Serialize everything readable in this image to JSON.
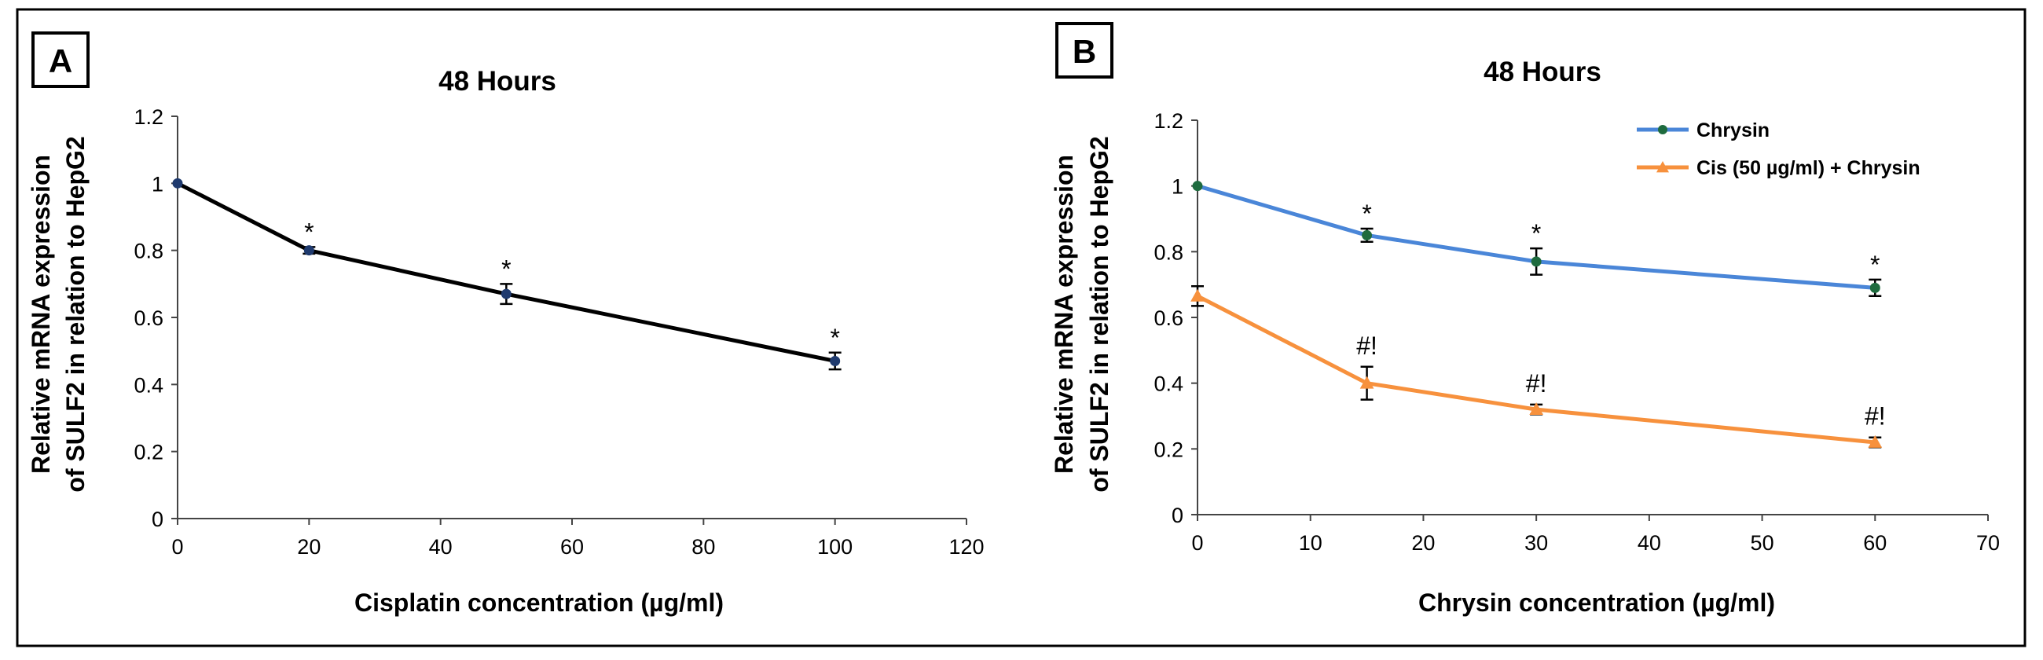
{
  "chart_data": [
    {
      "type": "line",
      "panel_label": "A",
      "title": "48 Hours",
      "xlabel": "Cisplatin concentration (µg/ml)",
      "ylabel_lines": [
        "Relative mRNA expression",
        "of SULF2 in relation to HepG2"
      ],
      "xlim": [
        0,
        120
      ],
      "ylim": [
        0,
        1.2
      ],
      "xticks": [
        0,
        20,
        40,
        60,
        80,
        100,
        120
      ],
      "yticks": [
        0,
        0.2,
        0.4,
        0.6,
        0.8,
        1,
        1.2
      ],
      "ytick_labels": [
        "0",
        "0.2",
        "0.4",
        "0.6",
        "0.8",
        "1",
        "1.2"
      ],
      "grid": false,
      "series": [
        {
          "name": "Cisplatin",
          "color": "#000000",
          "marker_color": "#1f3a6e",
          "marker": "circle",
          "x": [
            0,
            20,
            50,
            100
          ],
          "y": [
            1.0,
            0.8,
            0.67,
            0.47
          ],
          "err": [
            0.0,
            0.01,
            0.03,
            0.025
          ],
          "annotations": [
            "",
            "*",
            "*",
            "*"
          ]
        }
      ]
    },
    {
      "type": "line",
      "panel_label": "B",
      "title": "48 Hours",
      "xlabel": "Chrysin concentration (µg/ml)",
      "ylabel_lines": [
        "Relative mRNA expression",
        "of SULF2 in relation to HepG2"
      ],
      "xlim": [
        0,
        70
      ],
      "ylim": [
        0,
        1.2
      ],
      "xticks": [
        0,
        10,
        20,
        30,
        40,
        50,
        60,
        70
      ],
      "yticks": [
        0,
        0.2,
        0.4,
        0.6,
        0.8,
        1,
        1.2
      ],
      "ytick_labels": [
        "0",
        "0.2",
        "0.4",
        "0.6",
        "0.8",
        "1",
        "1.2"
      ],
      "grid": false,
      "legend_position": "top-right",
      "series": [
        {
          "name": "Chrysin",
          "color": "#4a86d8",
          "marker_color": "#1e6b3e",
          "marker": "circle",
          "x": [
            0,
            15,
            30,
            60
          ],
          "y": [
            1.0,
            0.85,
            0.77,
            0.69
          ],
          "err": [
            0.0,
            0.02,
            0.04,
            0.025
          ],
          "annotations": [
            "",
            "*",
            "*",
            "*"
          ]
        },
        {
          "name": "Cis (50 µg/ml) + Chrysin",
          "color": "#f7913d",
          "marker_color": "#f7913d",
          "marker": "triangle",
          "x": [
            0,
            15,
            30,
            60
          ],
          "y": [
            0.665,
            0.4,
            0.32,
            0.22
          ],
          "err": [
            0.03,
            0.05,
            0.015,
            0.015
          ],
          "annotations": [
            "",
            "#!",
            "#!",
            "#!"
          ]
        }
      ]
    }
  ]
}
